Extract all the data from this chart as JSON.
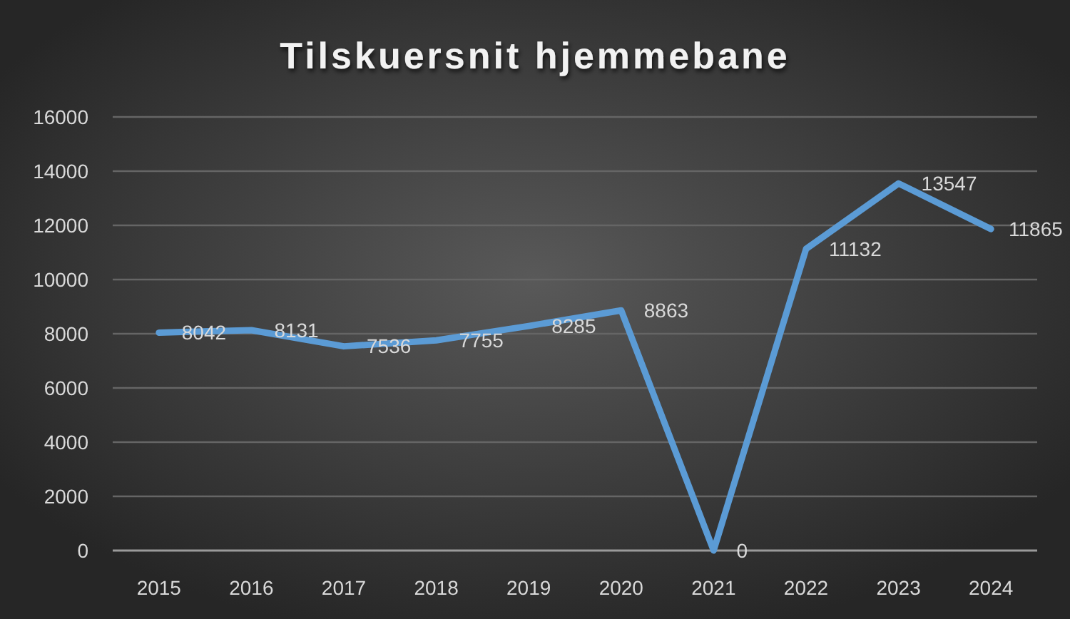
{
  "chart_data": {
    "type": "line",
    "title": "Tilskuersnit hjemmebane",
    "categories": [
      "2015",
      "2016",
      "2017",
      "2018",
      "2019",
      "2020",
      "2021",
      "2022",
      "2023",
      "2024"
    ],
    "values": [
      8042,
      8131,
      7536,
      7755,
      8285,
      8863,
      0,
      11132,
      13547,
      11865
    ],
    "color": "#5b9bd5",
    "ylim": [
      0,
      16000
    ],
    "yticks": [
      0,
      2000,
      4000,
      6000,
      8000,
      10000,
      12000,
      14000,
      16000
    ],
    "grid": "y",
    "data_labels": true
  }
}
